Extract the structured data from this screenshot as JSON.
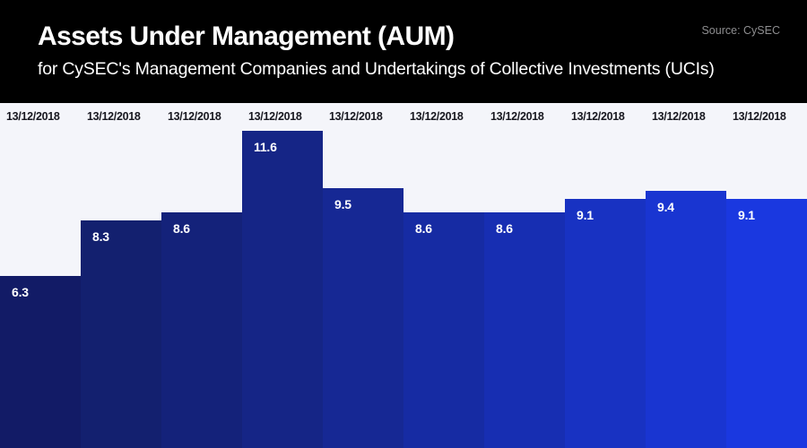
{
  "header": {
    "title": "Assets Under Management (AUM)",
    "subtitle": "for CySEC's Management Companies and Undertakings of Collective Investments (UCIs)",
    "source": "Source: CySEC"
  },
  "colors": {
    "header_bg": "#000000",
    "title_text": "#ffffff",
    "source_text": "#8e8e90",
    "chart_bg": "#f4f5fa",
    "date_label_text": "#17171f",
    "value_label_text": "#ffffff"
  },
  "chart_data": {
    "type": "bar",
    "title": "Assets Under Management (AUM)",
    "subtitle": "for CySEC's Management Companies and Undertakings of Collective Investments (UCIs)",
    "source": "Source: CySEC",
    "categories": [
      "13/12/2018",
      "13/12/2018",
      "13/12/2018",
      "13/12/2018",
      "13/12/2018",
      "13/12/2018",
      "13/12/2018",
      "13/12/2018",
      "13/12/2018",
      "13/12/2018"
    ],
    "values": [
      6.3,
      8.3,
      8.6,
      11.6,
      9.5,
      8.6,
      8.6,
      9.1,
      9.4,
      9.1
    ],
    "xlabel": "",
    "ylabel": "",
    "ylim": [
      0,
      12.6
    ],
    "grid": false,
    "legend": false,
    "value_labels_inside_bars": true,
    "bar_colors": [
      "#121b66",
      "#13206f",
      "#14227a",
      "#152586",
      "#162894",
      "#162ba3",
      "#172eb2",
      "#1832c2",
      "#1935d1",
      "#1a38e0"
    ]
  }
}
